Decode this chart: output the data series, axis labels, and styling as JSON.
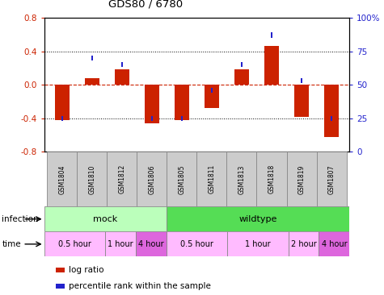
{
  "title": "GDS80 / 6780",
  "samples": [
    "GSM1804",
    "GSM1810",
    "GSM1812",
    "GSM1806",
    "GSM1805",
    "GSM1811",
    "GSM1813",
    "GSM1818",
    "GSM1819",
    "GSM1807"
  ],
  "log_ratio": [
    -0.42,
    0.08,
    0.18,
    -0.46,
    -0.42,
    -0.28,
    0.18,
    0.46,
    -0.38,
    -0.62
  ],
  "percentile": [
    25,
    70,
    65,
    25,
    25,
    46,
    65,
    87,
    53,
    25
  ],
  "bar_color": "#cc2200",
  "pct_color": "#2222cc",
  "ylim_left": [
    -0.8,
    0.8
  ],
  "ylim_right": [
    0,
    100
  ],
  "yticks_left": [
    -0.8,
    -0.4,
    0.0,
    0.4,
    0.8
  ],
  "yticks_right": [
    0,
    25,
    50,
    75,
    100
  ],
  "ytick_labels_right": [
    "0",
    "25",
    "50",
    "75",
    "100%"
  ],
  "hlines_dotted": [
    -0.4,
    0.4
  ],
  "hline_zero_color": "#cc2200",
  "infection_groups": [
    {
      "label": "mock",
      "start": 0,
      "end": 4,
      "color": "#bbffbb"
    },
    {
      "label": "wildtype",
      "start": 4,
      "end": 10,
      "color": "#55dd55"
    }
  ],
  "time_groups": [
    {
      "label": "0.5 hour",
      "start": 0,
      "end": 2,
      "color": "#ffbbff"
    },
    {
      "label": "1 hour",
      "start": 2,
      "end": 3,
      "color": "#ffbbff"
    },
    {
      "label": "4 hour",
      "start": 3,
      "end": 4,
      "color": "#dd66dd"
    },
    {
      "label": "0.5 hour",
      "start": 4,
      "end": 6,
      "color": "#ffbbff"
    },
    {
      "label": "1 hour",
      "start": 6,
      "end": 8,
      "color": "#ffbbff"
    },
    {
      "label": "2 hour",
      "start": 8,
      "end": 9,
      "color": "#ffbbff"
    },
    {
      "label": "4 hour",
      "start": 9,
      "end": 10,
      "color": "#dd66dd"
    }
  ],
  "legend_items": [
    {
      "label": "log ratio",
      "color": "#cc2200"
    },
    {
      "label": "percentile rank within the sample",
      "color": "#2222cc"
    }
  ],
  "bar_width": 0.5,
  "pct_square_size": 0.06,
  "infection_label": "infection",
  "time_label": "time",
  "sample_box_color": "#cccccc",
  "n_samples": 10
}
